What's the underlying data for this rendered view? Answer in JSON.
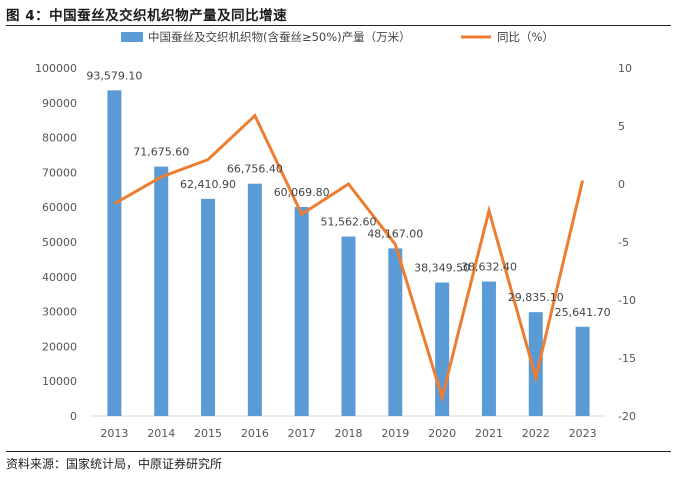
{
  "figure": {
    "title": "图 4：中国蚕丝及交织机织物产量及同比增速",
    "source": "资料来源：国家统计局，中原证券研究所"
  },
  "colors": {
    "bar": "#5b9bd5",
    "line": "#ed7d31",
    "axis": "#d9d9d9",
    "text": "#555555"
  },
  "chart_data": {
    "type": "bar+line",
    "categories": [
      "2013",
      "2014",
      "2015",
      "2016",
      "2017",
      "2018",
      "2019",
      "2020",
      "2021",
      "2022",
      "2023"
    ],
    "series": [
      {
        "name": "中国蚕丝及交织机织物(含蚕丝≥50%)产量（万米）",
        "type": "bar",
        "axis": "left",
        "values": [
          93579.1,
          71675.6,
          62410.9,
          66756.4,
          60069.8,
          51562.6,
          48167.0,
          38349.5,
          38632.4,
          29835.1,
          25641.7
        ],
        "labels": [
          "93,579.10",
          "71,675.60",
          "62,410.90",
          "66,756.40",
          "60,069.80",
          "51,562.60",
          "48,167.00",
          "38,349.50",
          "38,632.40",
          "29,835.10",
          "25,641.70"
        ]
      },
      {
        "name": "同比（%）",
        "type": "line",
        "axis": "right",
        "values": [
          -1.7,
          0.6,
          2.1,
          5.9,
          -2.6,
          0.0,
          -5.2,
          -18.4,
          -2.3,
          -16.7,
          0.3
        ]
      }
    ],
    "y_left": {
      "min": 0,
      "max": 100000,
      "ticks": [
        "0",
        "10000",
        "20000",
        "30000",
        "40000",
        "50000",
        "60000",
        "70000",
        "80000",
        "90000",
        "100000"
      ]
    },
    "y_right": {
      "min": -20,
      "max": 10,
      "ticks": [
        "-20",
        "-15",
        "-10",
        "-5",
        "0",
        "5",
        "10"
      ]
    },
    "legend_position": "top-center"
  }
}
